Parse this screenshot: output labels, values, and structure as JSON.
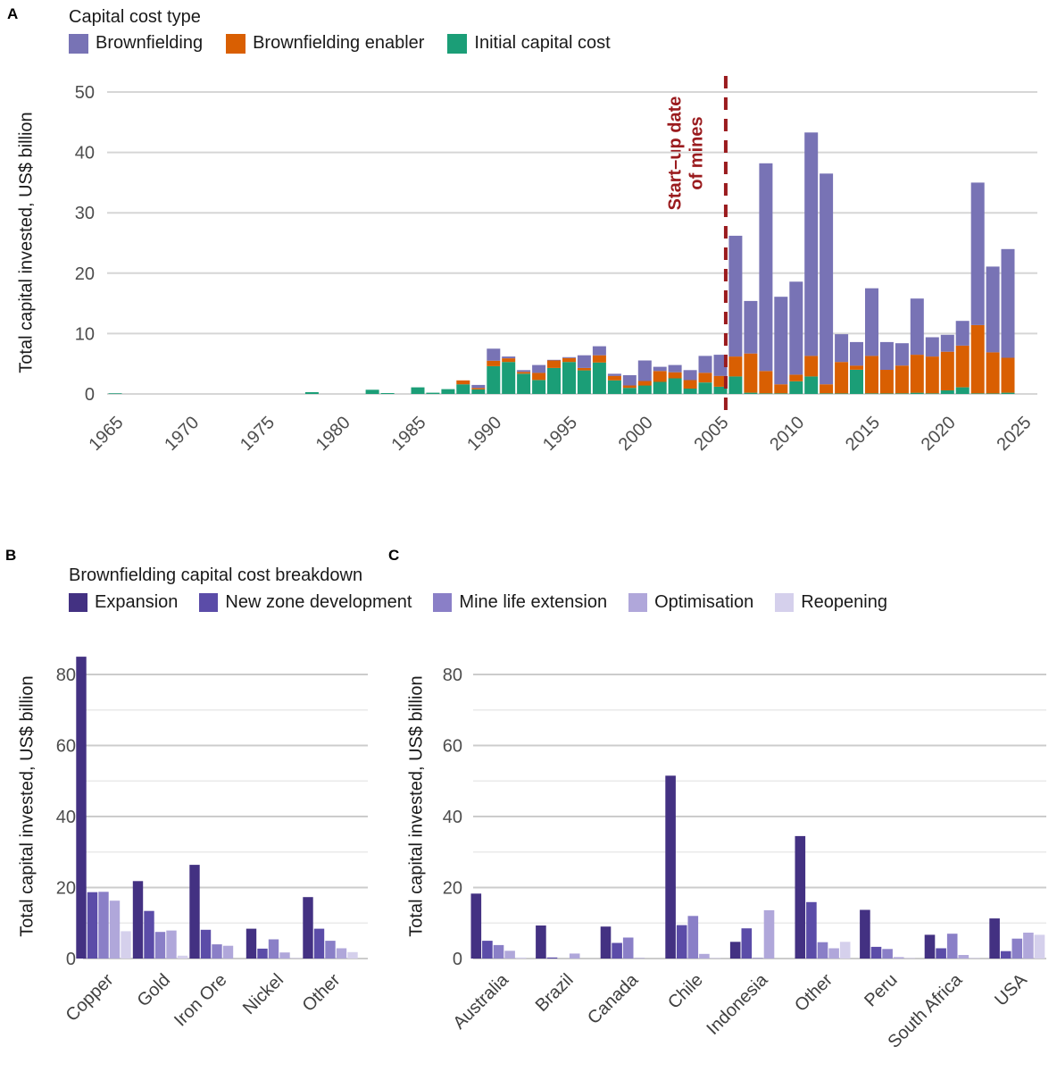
{
  "panels": {
    "A": {
      "letter": "A"
    },
    "B": {
      "letter": "B"
    },
    "C": {
      "letter": "C"
    }
  },
  "colors": {
    "brownfielding": "#7873b5",
    "enabler": "#d95f02",
    "initial": "#1b9e77",
    "annotation_red": "#9a1b1e",
    "grid_major": "#d6d6d6",
    "grid_minor": "#eaeaea",
    "tick_text": "#4d4d4d"
  },
  "chart_data": [
    {
      "id": "A",
      "type": "bar",
      "stacked": true,
      "title": "Capital cost type",
      "ylabel": "Total capital invested, US$ billion",
      "ylim": [
        0,
        50
      ],
      "yticks": [
        0,
        10,
        20,
        30,
        40,
        50
      ],
      "xticks": [
        1965,
        1970,
        1975,
        1980,
        1985,
        1990,
        1995,
        2000,
        2005,
        2010,
        2015,
        2020,
        2025
      ],
      "legend": [
        {
          "name": "Brownfielding",
          "color": "#7873b5"
        },
        {
          "name": "Brownfielding enabler",
          "color": "#d95f02"
        },
        {
          "name": "Initial capital cost",
          "color": "#1b9e77"
        }
      ],
      "annotation": {
        "line1": "Start–up date",
        "line2": "of mines",
        "x_year": 2005.35,
        "color": "#9a1b1e"
      },
      "bars_format": [
        "year",
        "initial_capital_cost",
        "brownfielding_enabler",
        "brownfielding"
      ],
      "bars": [
        [
          1965,
          0.1,
          0,
          0
        ],
        [
          1978,
          0.3,
          0,
          0
        ],
        [
          1982,
          0.7,
          0,
          0
        ],
        [
          1983,
          0.15,
          0,
          0
        ],
        [
          1985,
          1.1,
          0,
          0
        ],
        [
          1986,
          0.2,
          0,
          0
        ],
        [
          1987,
          0.8,
          0,
          0
        ],
        [
          1988,
          1.6,
          0.65,
          0
        ],
        [
          1989,
          0.75,
          0.25,
          0.5
        ],
        [
          1990,
          4.6,
          0.9,
          2.0
        ],
        [
          1991,
          5.3,
          0.6,
          0.3
        ],
        [
          1992,
          3.35,
          0.3,
          0.3
        ],
        [
          1993,
          2.3,
          1.2,
          1.3
        ],
        [
          1994,
          4.3,
          1.25,
          0.1
        ],
        [
          1995,
          5.3,
          0.65,
          0.15
        ],
        [
          1996,
          3.9,
          0.4,
          2.1
        ],
        [
          1997,
          5.2,
          1.2,
          1.5
        ],
        [
          1998,
          2.25,
          0.75,
          0.35
        ],
        [
          1999,
          1.0,
          0.4,
          1.7
        ],
        [
          2000,
          1.4,
          0.75,
          3.4
        ],
        [
          2001,
          2.0,
          1.8,
          0.7
        ],
        [
          2002,
          2.6,
          1.0,
          1.2
        ],
        [
          2003,
          0.9,
          1.4,
          1.65
        ],
        [
          2004,
          1.9,
          1.6,
          2.8
        ],
        [
          2005,
          1.2,
          1.8,
          3.5
        ],
        [
          2006,
          2.9,
          3.3,
          20.0
        ],
        [
          2007,
          0.2,
          6.5,
          8.7
        ],
        [
          2008,
          0.1,
          3.7,
          34.4
        ],
        [
          2009,
          0.1,
          1.5,
          14.5
        ],
        [
          2010,
          2.1,
          1.1,
          15.4
        ],
        [
          2011,
          2.9,
          3.4,
          37.0
        ],
        [
          2012,
          0.1,
          1.5,
          34.9
        ],
        [
          2013,
          0.1,
          5.2,
          4.6
        ],
        [
          2014,
          4.0,
          0.7,
          3.9
        ],
        [
          2015,
          0.1,
          6.2,
          11.2
        ],
        [
          2016,
          0.1,
          3.9,
          4.6
        ],
        [
          2017,
          0.1,
          4.6,
          3.7
        ],
        [
          2018,
          0.2,
          6.3,
          9.3
        ],
        [
          2019,
          0.1,
          6.1,
          3.2
        ],
        [
          2020,
          0.6,
          6.4,
          2.8
        ],
        [
          2021,
          1.1,
          6.9,
          4.1
        ],
        [
          2022,
          0.1,
          11.3,
          23.6
        ],
        [
          2023,
          0.1,
          6.8,
          14.2
        ],
        [
          2024,
          0.2,
          5.8,
          18.0
        ]
      ]
    },
    {
      "id": "B",
      "type": "bar",
      "grouped": true,
      "legend_title": "Brownfielding capital cost breakdown",
      "ylabel": "Total capital invested, US$ billion",
      "ylim": [
        0,
        80
      ],
      "yticks": [
        0,
        20,
        40,
        60,
        80
      ],
      "yminor": [
        10,
        30,
        50,
        70
      ],
      "series": [
        {
          "name": "Expansion",
          "color": "#433182"
        },
        {
          "name": "New zone development",
          "color": "#5b4ca8"
        },
        {
          "name": "Mine life extension",
          "color": "#8a7fc7"
        },
        {
          "name": "Optimisation",
          "color": "#b0a7da"
        },
        {
          "name": "Reopening",
          "color": "#d5d0ec"
        }
      ],
      "categories": [
        "Copper",
        "Gold",
        "Iron Ore",
        "Nickel",
        "Other"
      ],
      "values": [
        [
          85.0,
          18.7,
          18.8,
          16.3,
          7.7
        ],
        [
          21.8,
          13.4,
          7.5,
          7.9,
          0.8
        ],
        [
          26.4,
          8.1,
          4.0,
          3.6,
          0
        ],
        [
          8.4,
          2.8,
          5.4,
          1.7,
          0.1
        ],
        [
          17.3,
          8.4,
          5.0,
          2.9,
          1.8
        ]
      ]
    },
    {
      "id": "C",
      "type": "bar",
      "grouped": true,
      "ylabel": "Total capital invested, US$ billion",
      "ylim": [
        0,
        80
      ],
      "yticks": [
        0,
        20,
        40,
        60,
        80
      ],
      "yminor": [
        10,
        30,
        50,
        70
      ],
      "series": [
        {
          "name": "Expansion",
          "color": "#433182"
        },
        {
          "name": "New zone development",
          "color": "#5b4ca8"
        },
        {
          "name": "Mine life extension",
          "color": "#8a7fc7"
        },
        {
          "name": "Optimisation",
          "color": "#b0a7da"
        },
        {
          "name": "Reopening",
          "color": "#d5d0ec"
        }
      ],
      "categories": [
        "Australia",
        "Brazil",
        "Canada",
        "Chile",
        "Indonesia",
        "Other",
        "Peru",
        "South Africa",
        "USA"
      ],
      "values": [
        [
          18.3,
          5.0,
          3.8,
          2.2,
          0.3
        ],
        [
          9.3,
          0.3,
          0,
          1.4,
          0
        ],
        [
          9.0,
          4.4,
          5.9,
          0.15,
          0
        ],
        [
          51.5,
          9.4,
          12.0,
          1.3,
          0.1
        ],
        [
          4.7,
          8.5,
          0.1,
          13.6,
          0
        ],
        [
          34.5,
          15.9,
          4.6,
          2.9,
          4.7
        ],
        [
          13.7,
          3.3,
          2.7,
          0.4,
          0.1
        ],
        [
          6.7,
          2.9,
          7.0,
          1.0,
          0.1
        ],
        [
          11.3,
          2.1,
          5.6,
          7.3,
          6.7
        ]
      ]
    }
  ]
}
